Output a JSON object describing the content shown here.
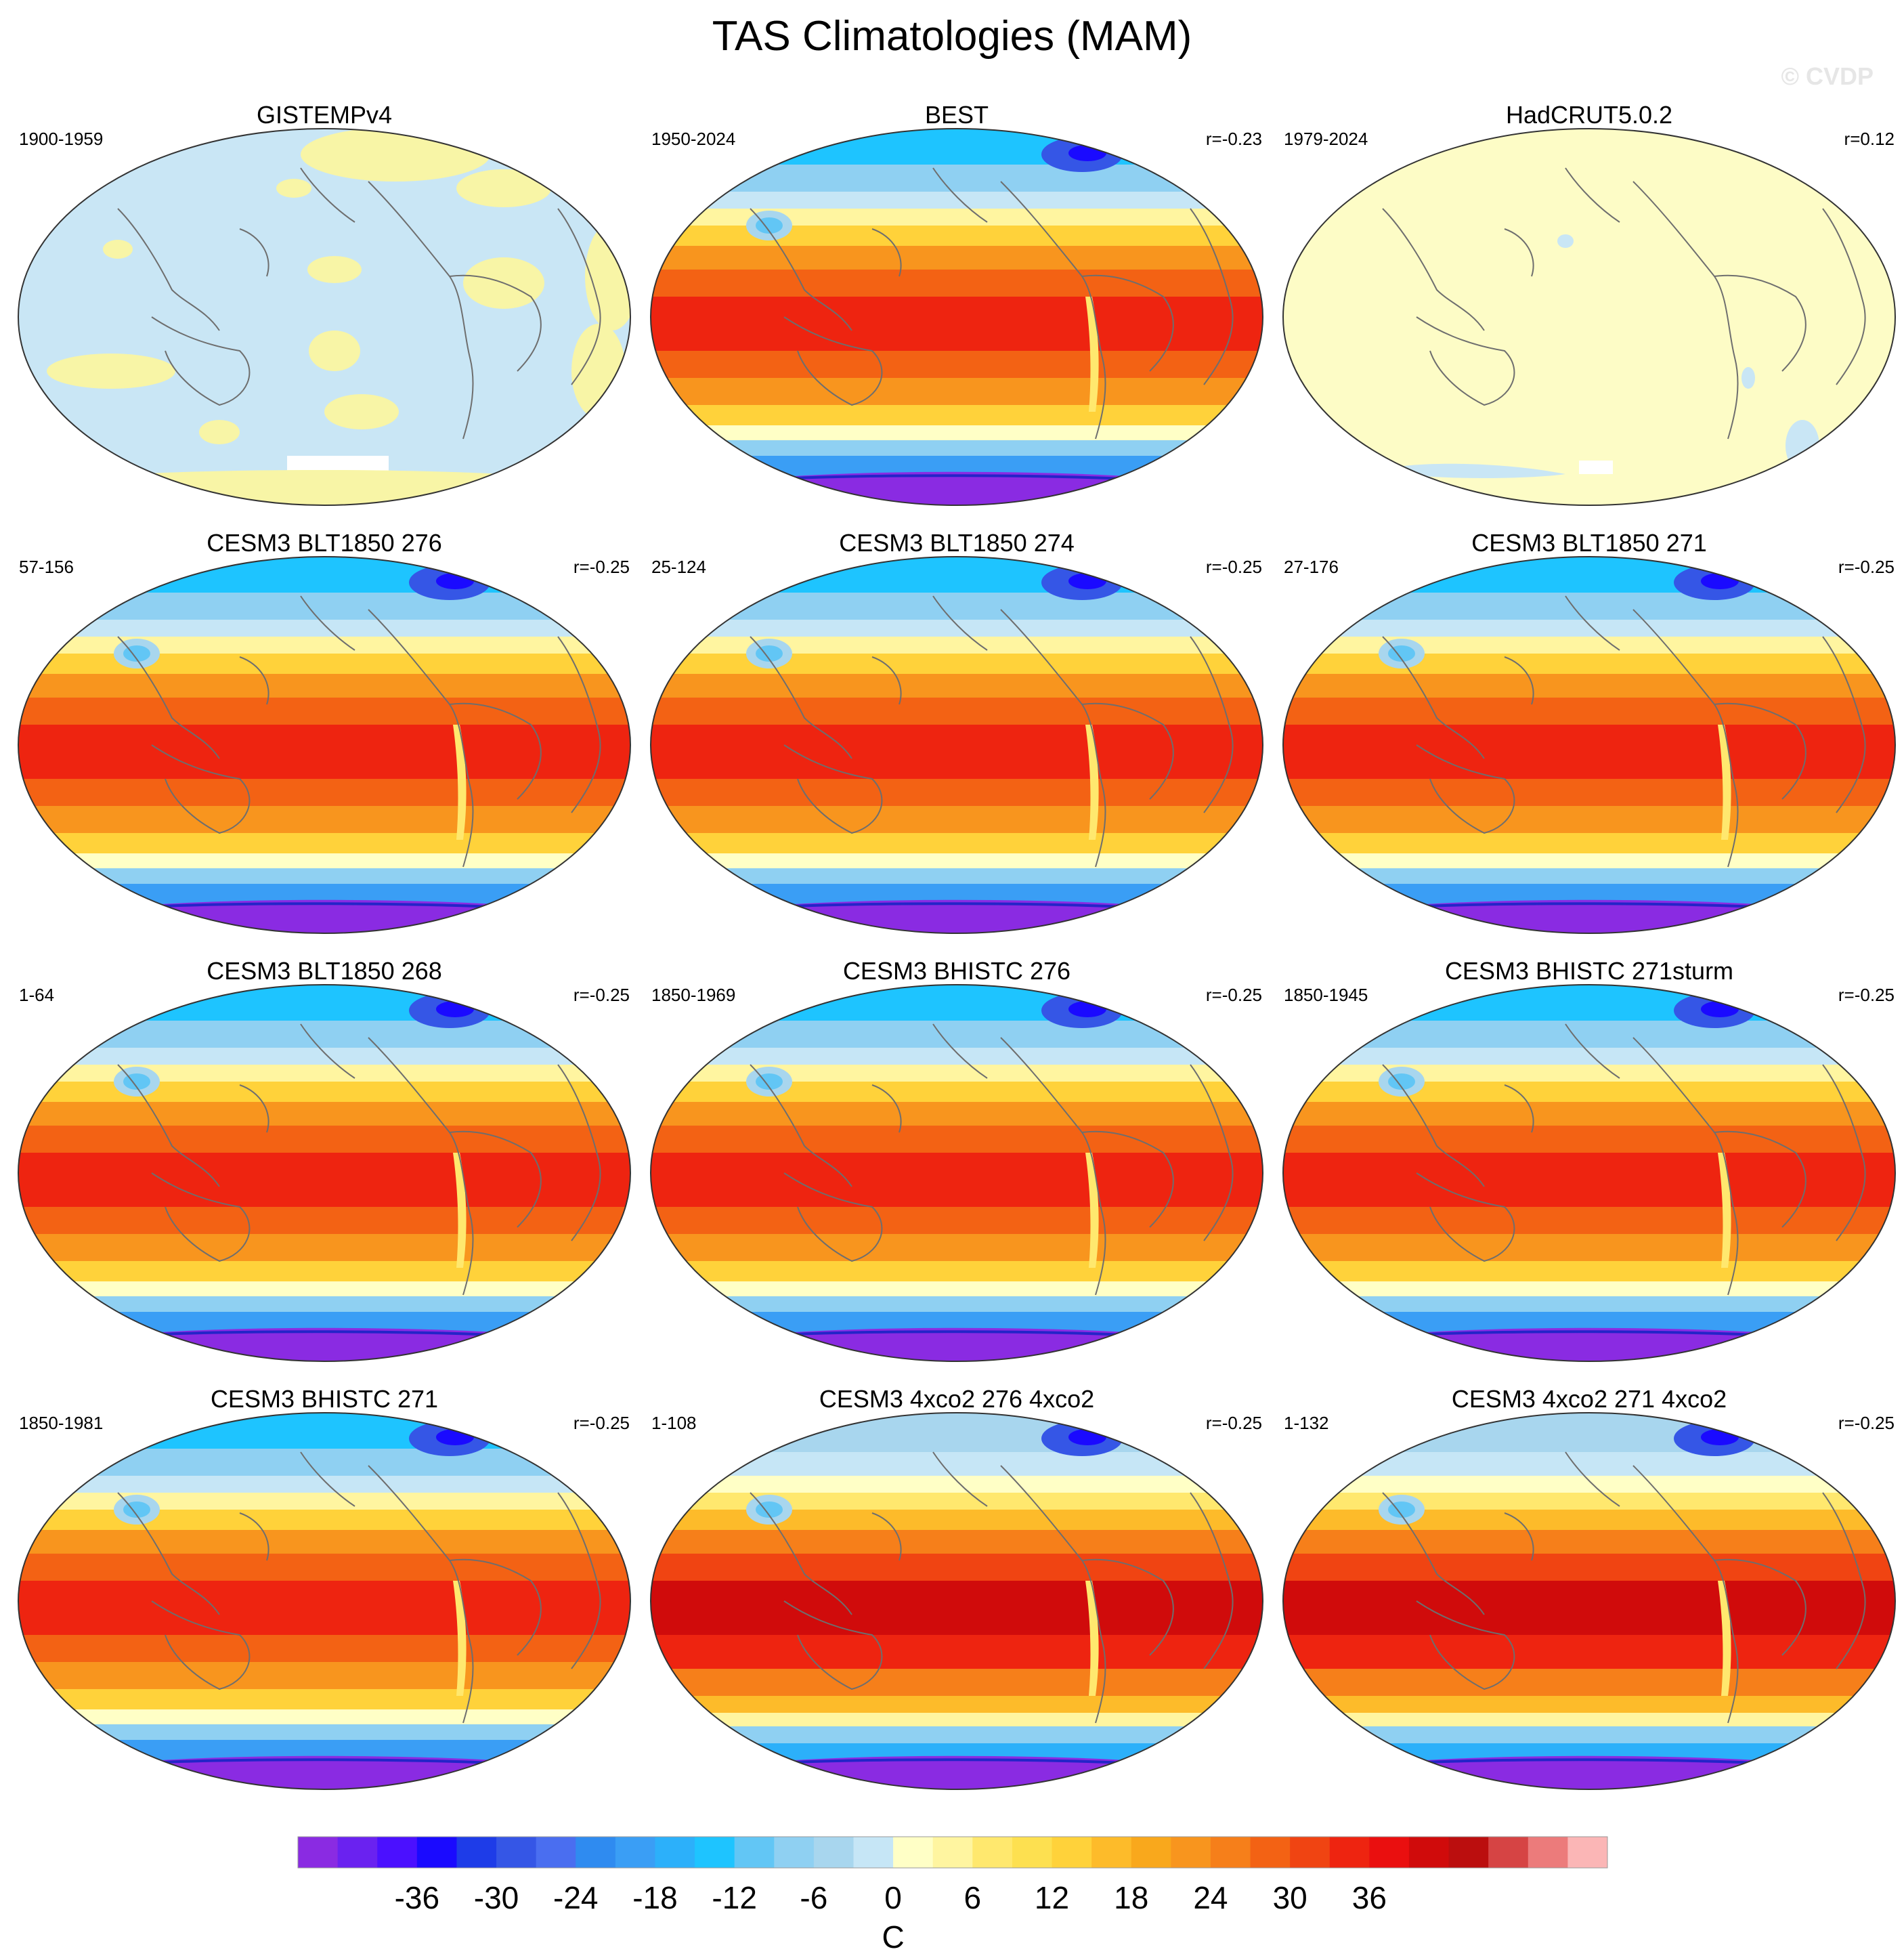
{
  "title": "TAS Climatologies (MAM)",
  "watermark": "© CVDP",
  "panels": [
    {
      "name": "GISTEMPv4",
      "period": "1900-1959",
      "corr": "",
      "style": "gistemp"
    },
    {
      "name": "BEST",
      "period": "1950-2024",
      "corr": "r=-0.23",
      "style": "full"
    },
    {
      "name": "HadCRUT5.0.2",
      "period": "1979-2024",
      "corr": "r=0.12",
      "style": "hadcrut"
    },
    {
      "name": "CESM3 BLT1850 276",
      "period": "57-156",
      "corr": "r=-0.25",
      "style": "full"
    },
    {
      "name": "CESM3 BLT1850 274",
      "period": "25-124",
      "corr": "r=-0.25",
      "style": "full"
    },
    {
      "name": "CESM3 BLT1850 271",
      "period": "27-176",
      "corr": "r=-0.25",
      "style": "full"
    },
    {
      "name": "CESM3 BLT1850 268",
      "period": "1-64",
      "corr": "r=-0.25",
      "style": "full"
    },
    {
      "name": "CESM3 BHISTC 276",
      "period": "1850-1969",
      "corr": "r=-0.25",
      "style": "full"
    },
    {
      "name": "CESM3 BHISTC 271sturm",
      "period": "1850-1945",
      "corr": "r=-0.25",
      "style": "full"
    },
    {
      "name": "CESM3 BHISTC 271",
      "period": "1850-1981",
      "corr": "r=-0.25",
      "style": "full"
    },
    {
      "name": "CESM3 4xco2 276 4xco2",
      "period": "1-108",
      "corr": "r=-0.25",
      "style": "warm"
    },
    {
      "name": "CESM3 4xco2 271 4xco2",
      "period": "1-132",
      "corr": "r=-0.25",
      "style": "warm"
    }
  ],
  "colorbar": {
    "unit": "C",
    "tick_labels": [
      "-36",
      "-30",
      "-24",
      "-18",
      "-12",
      "-6",
      "0",
      "6",
      "12",
      "18",
      "24",
      "30",
      "36"
    ],
    "colors": [
      "#8a2be2",
      "#6a22f0",
      "#4b10ff",
      "#1a0aff",
      "#1e3ce8",
      "#3556e6",
      "#4a6ef0",
      "#2f8bf0",
      "#3a9ef5",
      "#2cb0fa",
      "#1ec4ff",
      "#62c6f5",
      "#8fd0f2",
      "#a8d6ee",
      "#c6e6f6",
      "#ffffc6",
      "#fff5a0",
      "#ffe86e",
      "#fde050",
      "#ffd23a",
      "#fdbb2a",
      "#f9a81c",
      "#f8951e",
      "#f67f1a",
      "#f36214",
      "#f04412",
      "#ee2410",
      "#ea0f0f",
      "#d00b0b",
      "#bb0e0e",
      "#d64444",
      "#ec7b7b",
      "#fbb6b6"
    ]
  }
}
